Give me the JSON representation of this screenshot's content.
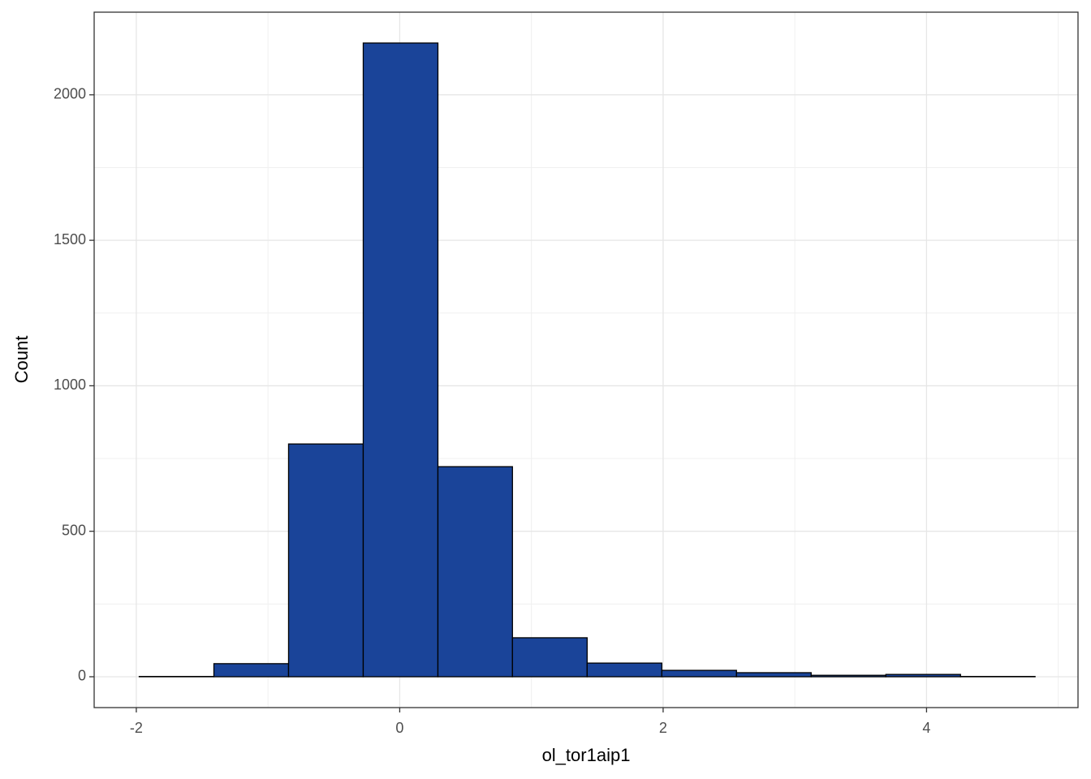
{
  "chart_data": {
    "type": "histogram",
    "x_label": "ol_tor1aip1",
    "y_label": "Count",
    "bins": [
      -1.978,
      -1.411,
      -0.844,
      -0.277,
      0.29,
      0.856,
      1.423,
      1.99,
      2.557,
      3.124,
      3.691,
      4.258,
      4.824
    ],
    "values": [
      1,
      45,
      800,
      2178,
      722,
      134,
      47,
      22,
      14,
      5,
      8,
      1
    ],
    "color": "#1a4499",
    "edge_color": "#000000",
    "xlim": [
      -2.32,
      5.15
    ],
    "xticks": [
      -2,
      0,
      2,
      4
    ],
    "minor_xticks": [
      -1,
      1,
      3,
      5
    ],
    "ylim": [
      -106,
      2284
    ],
    "yticks": [
      0,
      500,
      1000,
      1500,
      2000
    ],
    "minor_yticks": [
      250,
      750,
      1250,
      1750
    ],
    "grid": true
  }
}
